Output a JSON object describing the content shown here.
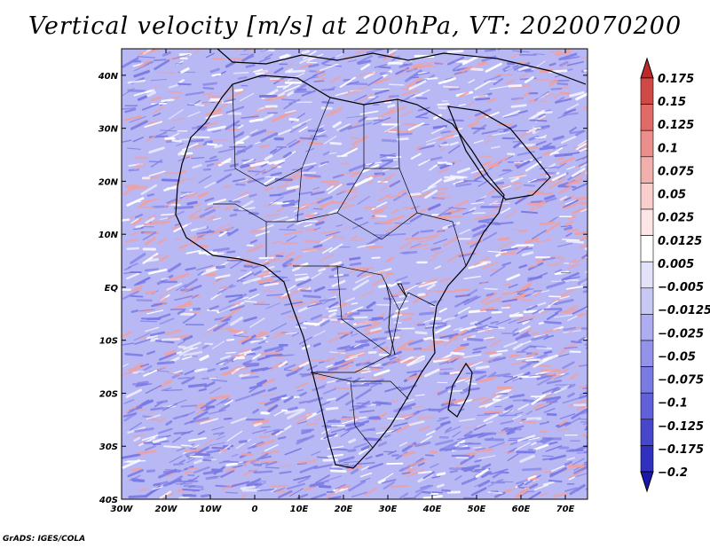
{
  "title": "Vertical velocity [m/s] at 200hPa, VT: 2020070200",
  "footer": "GrADS: IGES/COLA",
  "map": {
    "lon_range": [
      -30,
      75
    ],
    "lat_range": [
      -40,
      45
    ],
    "lon_ticks": [
      "30W",
      "20W",
      "10W",
      "0",
      "10E",
      "20E",
      "30E",
      "40E",
      "50E",
      "60E",
      "70E"
    ],
    "lat_ticks": [
      "40N",
      "30N",
      "20N",
      "10N",
      "EQ",
      "10S",
      "20S",
      "30S",
      "40S"
    ]
  },
  "colorbar": {
    "colors": [
      "#bd2a2a",
      "#cf4a47",
      "#e06a67",
      "#ea8f8c",
      "#f2b0ad",
      "#f8cfcd",
      "#fde6e5",
      "#ffffff",
      "#e2e2fa",
      "#c8c8f5",
      "#adadf0",
      "#9393ea",
      "#7a7ae3",
      "#6060d8",
      "#4747cc",
      "#3030bf",
      "#1818ad"
    ],
    "labels": [
      "0.175",
      "0.15",
      "0.125",
      "0.1",
      "0.075",
      "0.05",
      "0.025",
      "0.0125",
      "0.005",
      "−0.005",
      "−0.0125",
      "−0.025",
      "−0.05",
      "−0.075",
      "−0.1",
      "−0.125",
      "−0.175",
      "−0.2"
    ]
  },
  "field_palette": {
    "background": "#b8b8f4",
    "blue": "#7a7ae6",
    "red": "#f0a0a0",
    "white": "#ffffff"
  }
}
